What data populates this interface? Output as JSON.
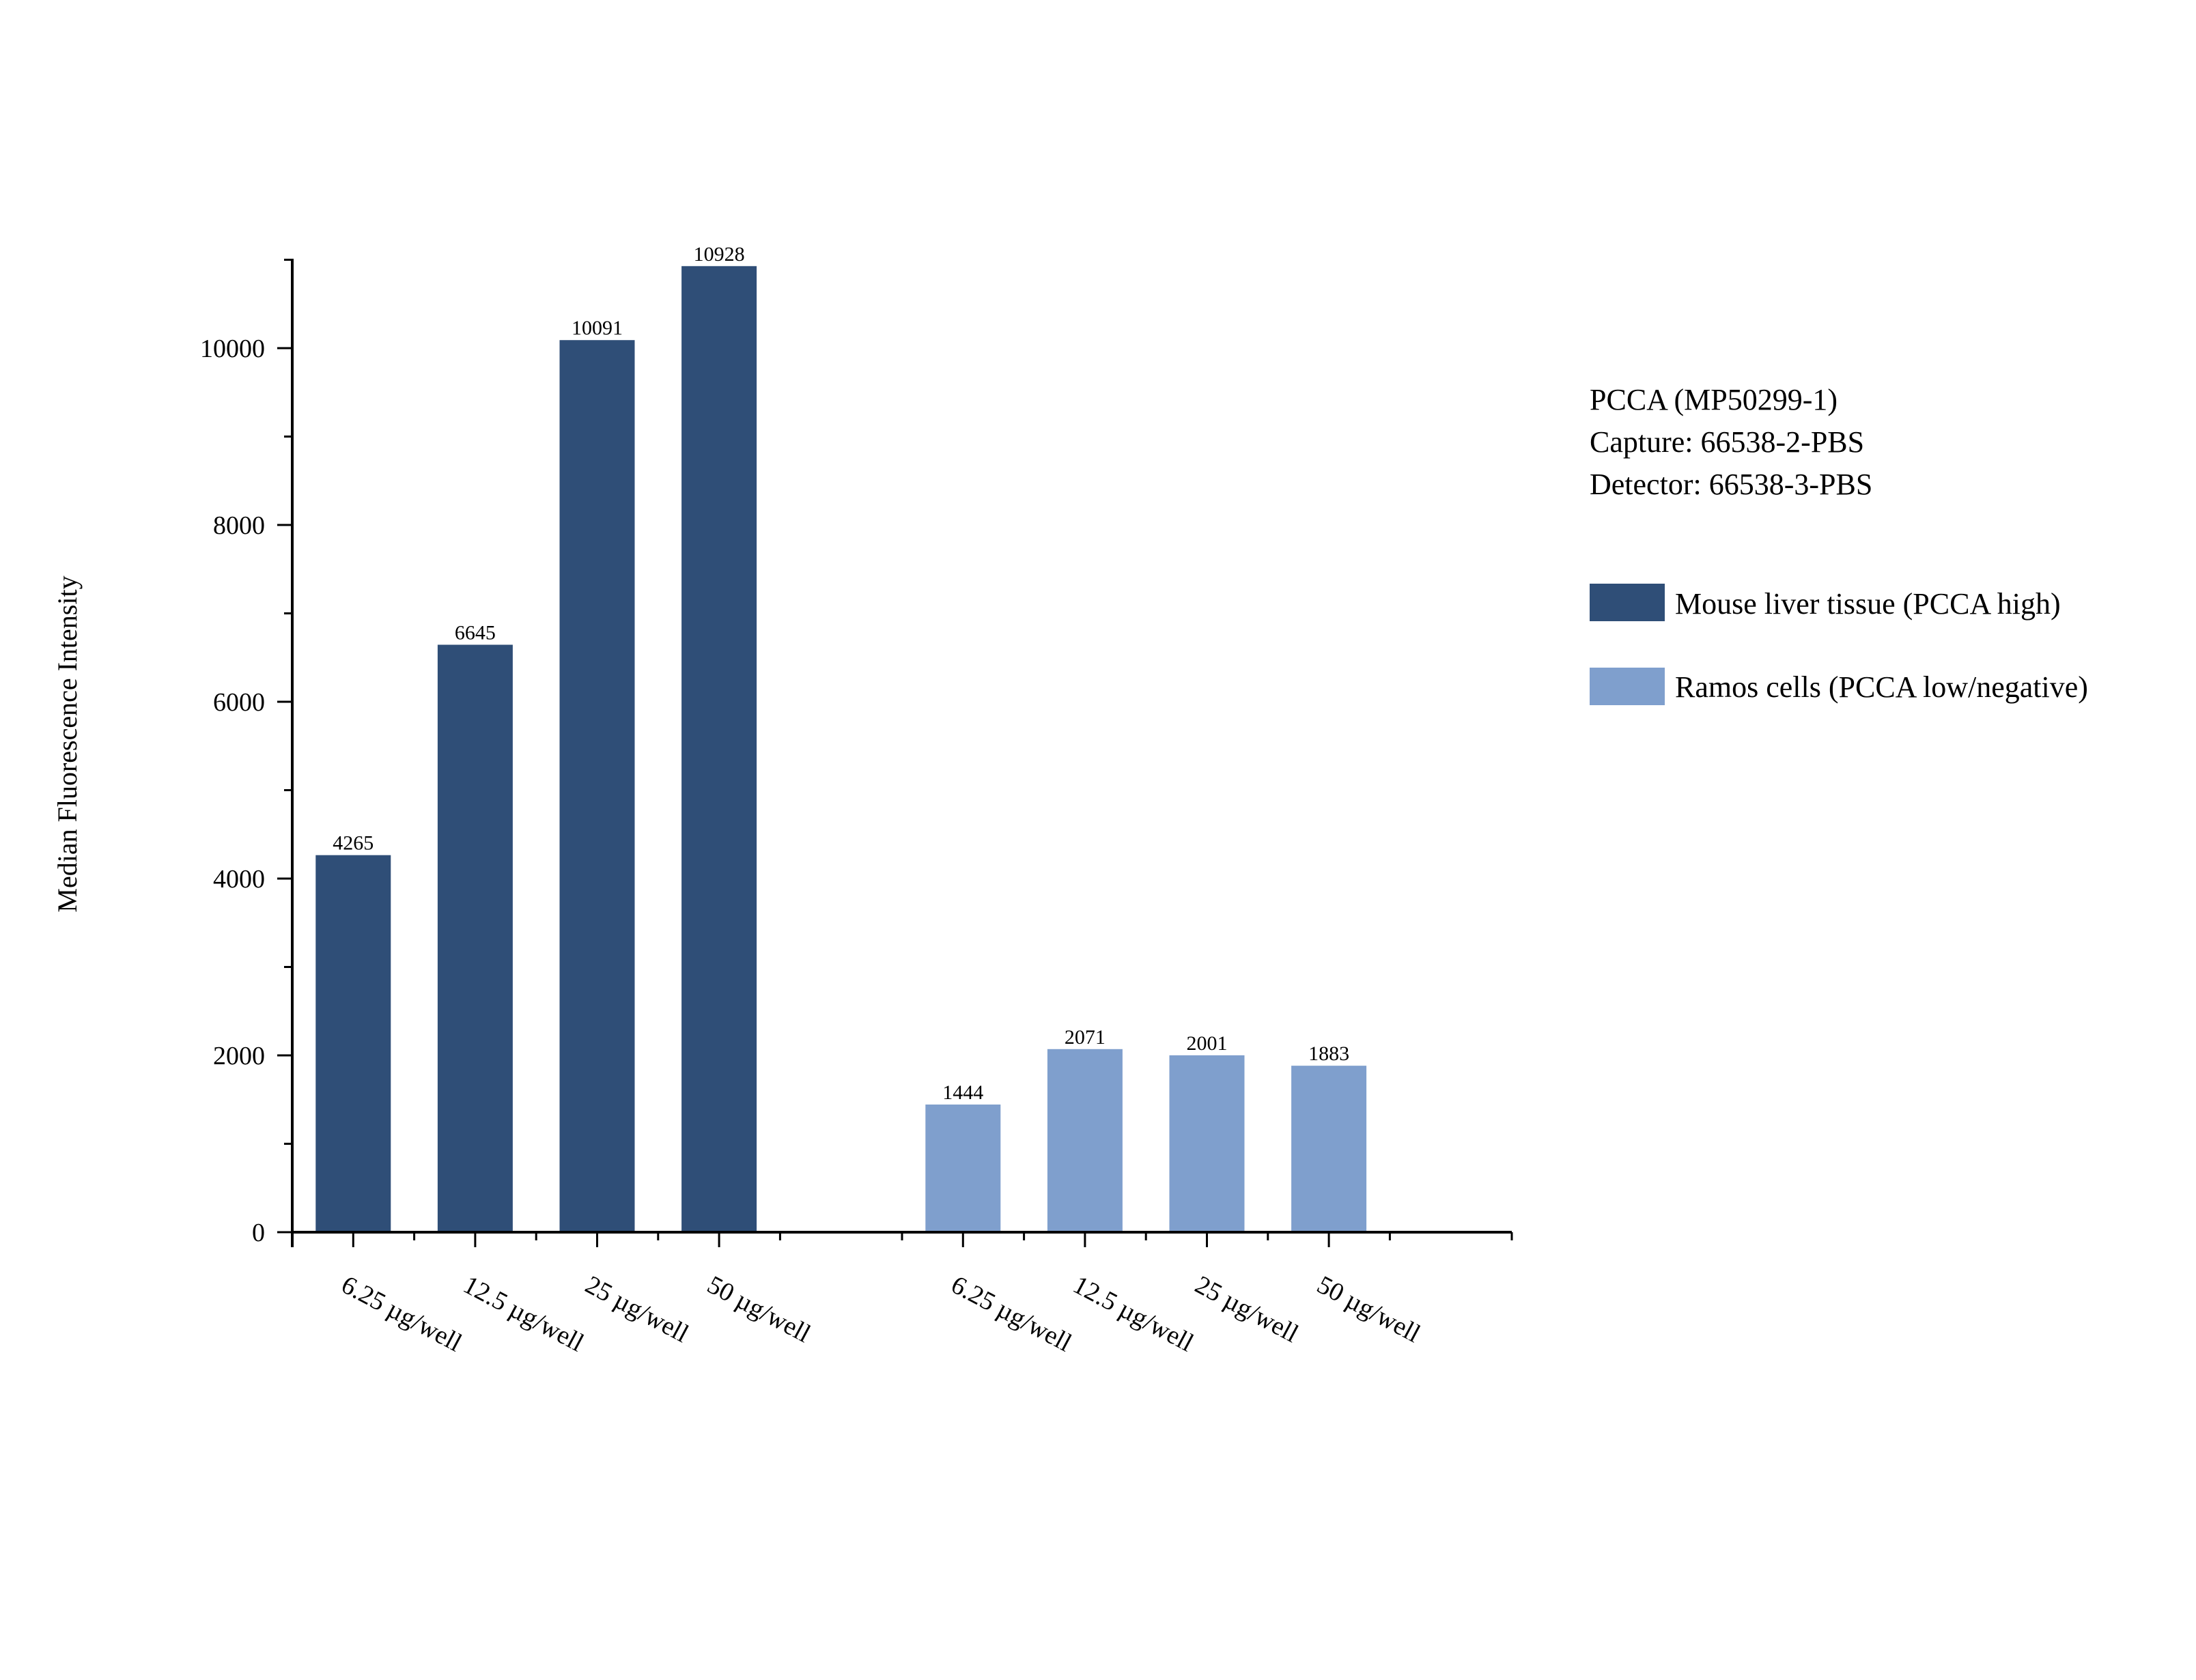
{
  "chart_data": {
    "type": "bar",
    "ylabel": "Median Fluorescence Intensity",
    "xlabel": "",
    "ylim": [
      0,
      11000
    ],
    "yticks": [
      0,
      2000,
      4000,
      6000,
      8000,
      10000
    ],
    "grid": false,
    "legend_position": "right",
    "info_lines": [
      "PCCA (MP50299-1)",
      "Capture: 66538-2-PBS",
      "Detector: 66538-3-PBS"
    ],
    "categories": [
      "6.25 µg/well",
      "12.5 µg/well",
      "25 µg/well",
      "50 µg/well"
    ],
    "series": [
      {
        "name": "Mouse liver tissue (PCCA high)",
        "color": "#2f4e77",
        "values": [
          4265,
          6645,
          10091,
          10928
        ]
      },
      {
        "name": "Ramos cells (PCCA low/negative)",
        "color": "#7f9fcd",
        "values": [
          1444,
          2071,
          2001,
          1883
        ]
      }
    ]
  }
}
